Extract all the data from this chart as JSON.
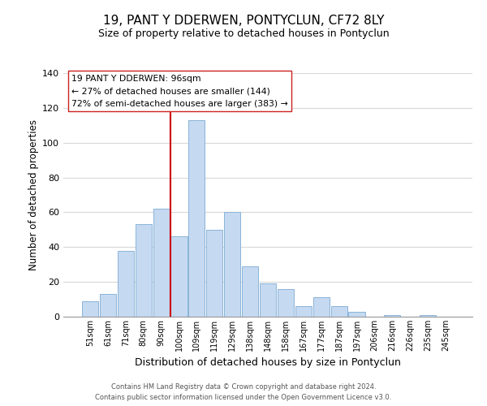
{
  "title": "19, PANT Y DDERWEN, PONTYCLUN, CF72 8LY",
  "subtitle": "Size of property relative to detached houses in Pontyclun",
  "xlabel": "Distribution of detached houses by size in Pontyclun",
  "ylabel": "Number of detached properties",
  "bar_labels": [
    "51sqm",
    "61sqm",
    "71sqm",
    "80sqm",
    "90sqm",
    "100sqm",
    "109sqm",
    "119sqm",
    "129sqm",
    "138sqm",
    "148sqm",
    "158sqm",
    "167sqm",
    "177sqm",
    "187sqm",
    "197sqm",
    "206sqm",
    "216sqm",
    "226sqm",
    "235sqm",
    "245sqm"
  ],
  "bar_values": [
    9,
    13,
    38,
    53,
    62,
    46,
    113,
    50,
    60,
    29,
    19,
    16,
    6,
    11,
    6,
    3,
    0,
    1,
    0,
    1,
    0
  ],
  "bar_color": "#c5d9f1",
  "bar_edge_color": "#8ab4d8",
  "vline_color": "#cc0000",
  "vline_pos": 4.5,
  "ylim": [
    0,
    140
  ],
  "yticks": [
    0,
    20,
    40,
    60,
    80,
    100,
    120,
    140
  ],
  "annotation_title": "19 PANT Y DDERWEN: 96sqm",
  "annotation_line1": "← 27% of detached houses are smaller (144)",
  "annotation_line2": "72% of semi-detached houses are larger (383) →",
  "footer1": "Contains HM Land Registry data © Crown copyright and database right 2024.",
  "footer2": "Contains public sector information licensed under the Open Government Licence v3.0.",
  "background_color": "#ffffff",
  "grid_color": "#d8d8d8",
  "title_fontsize": 11,
  "subtitle_fontsize": 9,
  "ylabel_fontsize": 8.5,
  "xlabel_fontsize": 9
}
